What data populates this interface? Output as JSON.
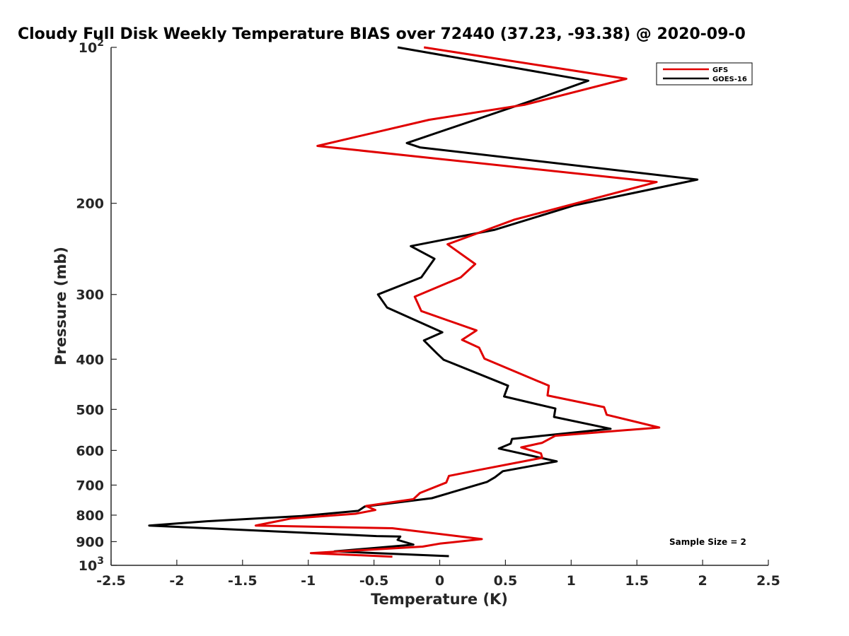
{
  "chart_data": {
    "type": "line",
    "title": "Cloudy Full Disk Weekly Temperature BIAS over 72440 (37.23, -93.38) @ 2020-09-0",
    "xlabel": "Temperature (K)",
    "ylabel": "Pressure (mb)",
    "xlim": [
      -2.5,
      2.5
    ],
    "ylim": [
      100,
      1000
    ],
    "yscale": "log",
    "y_reversed": true,
    "xticks": [
      "-2.5",
      "-2",
      "-1.5",
      "-1",
      "-0.5",
      "0",
      "0.5",
      "1",
      "1.5",
      "2",
      "2.5"
    ],
    "yticks": [
      {
        "value": 100,
        "base": "10",
        "exp": "2",
        "label": ""
      },
      {
        "value": 200,
        "label": "200"
      },
      {
        "value": 300,
        "label": "300"
      },
      {
        "value": 400,
        "label": "400"
      },
      {
        "value": 500,
        "label": "500"
      },
      {
        "value": 600,
        "label": "600"
      },
      {
        "value": 700,
        "label": "700"
      },
      {
        "value": 800,
        "label": "800"
      },
      {
        "value": 900,
        "label": "900"
      },
      {
        "value": 1000,
        "base": "10",
        "exp": "3",
        "label": ""
      }
    ],
    "legend": {
      "position": "top-right"
    },
    "annotation": "Sample Size = 2",
    "grid": false,
    "series": [
      {
        "name": "GFS",
        "color": "#e00000",
        "points": [
          [
            -0.12,
            100
          ],
          [
            1.42,
            115
          ],
          [
            0.65,
            129
          ],
          [
            -0.08,
            138
          ],
          [
            -0.93,
            155
          ],
          [
            1.65,
            182
          ],
          [
            0.57,
            215
          ],
          [
            0.06,
            240
          ],
          [
            0.27,
            262
          ],
          [
            0.16,
            278
          ],
          [
            -0.19,
            303
          ],
          [
            -0.14,
            323
          ],
          [
            0.28,
            352
          ],
          [
            0.17,
            367
          ],
          [
            0.3,
            380
          ],
          [
            0.34,
            399
          ],
          [
            0.83,
            450
          ],
          [
            0.82,
            470
          ],
          [
            1.25,
            495
          ],
          [
            1.27,
            512
          ],
          [
            1.67,
            542
          ],
          [
            0.88,
            562
          ],
          [
            0.78,
            580
          ],
          [
            0.62,
            592
          ],
          [
            0.77,
            608
          ],
          [
            0.78,
            620
          ],
          [
            0.29,
            655
          ],
          [
            0.07,
            672
          ],
          [
            0.05,
            692
          ],
          [
            -0.15,
            725
          ],
          [
            -0.2,
            745
          ],
          [
            -0.56,
            768
          ],
          [
            -0.49,
            782
          ],
          [
            -0.64,
            795
          ],
          [
            -1.13,
            812
          ],
          [
            -1.4,
            838
          ],
          [
            -0.36,
            848
          ],
          [
            0.32,
            890
          ],
          [
            0.0,
            908
          ],
          [
            -0.13,
            920
          ],
          [
            -0.98,
            947
          ],
          [
            -0.36,
            962
          ]
        ]
      },
      {
        "name": "GOES-16",
        "color": "#000000",
        "points": [
          [
            -0.32,
            100
          ],
          [
            1.13,
            116
          ],
          [
            0.81,
            124
          ],
          [
            -0.25,
            153
          ],
          [
            -0.15,
            156
          ],
          [
            1.96,
            180
          ],
          [
            1.02,
            202
          ],
          [
            0.42,
            225
          ],
          [
            -0.22,
            242
          ],
          [
            -0.04,
            256
          ],
          [
            -0.14,
            278
          ],
          [
            -0.47,
            300
          ],
          [
            -0.4,
            318
          ],
          [
            0.02,
            355
          ],
          [
            -0.12,
            368
          ],
          [
            -0.02,
            390
          ],
          [
            0.03,
            401
          ],
          [
            0.52,
            450
          ],
          [
            0.49,
            472
          ],
          [
            0.88,
            498
          ],
          [
            0.87,
            517
          ],
          [
            1.3,
            545
          ],
          [
            0.55,
            570
          ],
          [
            0.54,
            582
          ],
          [
            0.45,
            595
          ],
          [
            0.89,
            630
          ],
          [
            0.48,
            658
          ],
          [
            0.42,
            676
          ],
          [
            0.36,
            690
          ],
          [
            -0.06,
            742
          ],
          [
            -0.57,
            770
          ],
          [
            -0.62,
            785
          ],
          [
            -1.05,
            803
          ],
          [
            -1.77,
            822
          ],
          [
            -2.21,
            838
          ],
          [
            -0.48,
            878
          ],
          [
            -0.3,
            880
          ],
          [
            -0.32,
            893
          ],
          [
            -0.2,
            912
          ],
          [
            -0.8,
            940
          ],
          [
            0.07,
            960
          ]
        ]
      }
    ]
  }
}
